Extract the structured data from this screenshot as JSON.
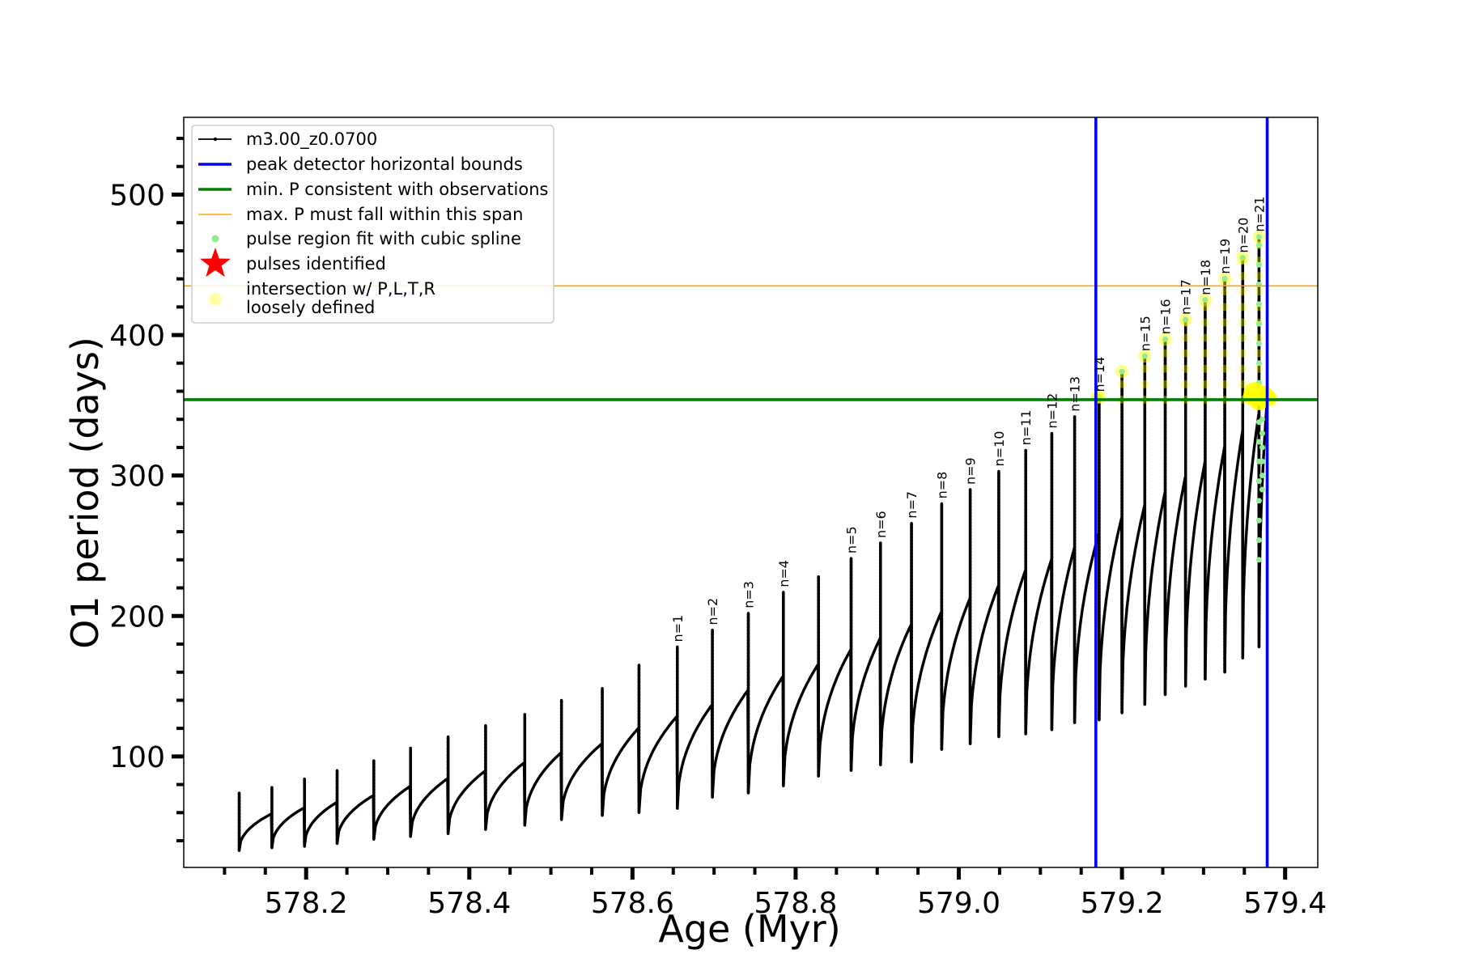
{
  "chart_data": {
    "type": "line",
    "title": "",
    "xlabel": "Age (Myr)",
    "ylabel": "O1 period (days)",
    "xlim": [
      578.05,
      579.44
    ],
    "ylim": [
      21,
      555
    ],
    "x_ticks": [
      578.2,
      578.4,
      578.6,
      578.8,
      579.0,
      579.2,
      579.4
    ],
    "x_tick_labels": [
      "578.2",
      "578.4",
      "578.6",
      "578.8",
      "579.0",
      "579.2",
      "579.4"
    ],
    "x_minor_step": 0.05,
    "y_ticks": [
      100,
      200,
      300,
      400,
      500
    ],
    "y_tick_labels": [
      "100",
      "200",
      "300",
      "400",
      "500"
    ],
    "y_minor_step": 20,
    "grid": false,
    "legend_position": "top-left",
    "colors": {
      "track": "#000000",
      "bounds": "#0000ee",
      "min_period": "#007f00",
      "max_period": "#ffa500",
      "spline": "#90ee90",
      "pulse_star": "#ff0000",
      "loose_points": "#ffff00"
    },
    "legend": [
      {
        "label": "m3.00_z0.0700",
        "marker": "line-dot"
      },
      {
        "label": "peak detector horizontal bounds",
        "marker": "blue-line"
      },
      {
        "label": "min. P consistent with observations",
        "marker": "green-line"
      },
      {
        "label": "max. P must fall within this span",
        "marker": "orange-line"
      },
      {
        "label": "pulse region fit with cubic spline",
        "marker": "green-dot"
      },
      {
        "label": "pulses identified",
        "marker": "red-star"
      },
      {
        "label": "intersection w/ P,L,T,R",
        "marker": "yellow-dot"
      },
      {
        "label": "loosely defined",
        "marker": "none"
      }
    ],
    "vertical_bounds": [
      579.168,
      579.378
    ],
    "min_period": 354,
    "max_period": 435,
    "pulses": [
      {
        "age": 578.118,
        "floor": 33,
        "peak": 74,
        "label": ""
      },
      {
        "age": 578.158,
        "floor": 35,
        "peak": 78,
        "label": ""
      },
      {
        "age": 578.198,
        "floor": 36,
        "peak": 84,
        "label": ""
      },
      {
        "age": 578.238,
        "floor": 38,
        "peak": 90,
        "label": ""
      },
      {
        "age": 578.283,
        "floor": 41,
        "peak": 97,
        "label": ""
      },
      {
        "age": 578.328,
        "floor": 43,
        "peak": 106,
        "label": ""
      },
      {
        "age": 578.374,
        "floor": 45,
        "peak": 114,
        "label": ""
      },
      {
        "age": 578.42,
        "floor": 48,
        "peak": 122,
        "label": ""
      },
      {
        "age": 578.468,
        "floor": 51,
        "peak": 130,
        "label": ""
      },
      {
        "age": 578.513,
        "floor": 55,
        "peak": 140,
        "label": ""
      },
      {
        "age": 578.563,
        "floor": 58,
        "peak": 148,
        "label": ""
      },
      {
        "age": 578.608,
        "floor": 60,
        "peak": 165,
        "label": ""
      },
      {
        "age": 578.655,
        "floor": 63,
        "peak": 178,
        "label": "n=1"
      },
      {
        "age": 578.698,
        "floor": 71,
        "peak": 190,
        "label": "n=2"
      },
      {
        "age": 578.742,
        "floor": 74,
        "peak": 202,
        "label": "n=3"
      },
      {
        "age": 578.785,
        "floor": 79,
        "peak": 217,
        "label": "n=4"
      },
      {
        "age": 578.828,
        "floor": 86,
        "peak": 228,
        "label": ""
      },
      {
        "age": 578.868,
        "floor": 90,
        "peak": 241,
        "label": "n=5"
      },
      {
        "age": 578.904,
        "floor": 94,
        "peak": 252,
        "label": "n=6"
      },
      {
        "age": 578.942,
        "floor": 96,
        "peak": 266,
        "label": "n=7"
      },
      {
        "age": 578.979,
        "floor": 105,
        "peak": 280,
        "label": "n=8"
      },
      {
        "age": 579.014,
        "floor": 109,
        "peak": 290,
        "label": "n=9"
      },
      {
        "age": 579.049,
        "floor": 114,
        "peak": 303,
        "label": "n=10"
      },
      {
        "age": 579.082,
        "floor": 116,
        "peak": 318,
        "label": "n=11"
      },
      {
        "age": 579.114,
        "floor": 119,
        "peak": 330,
        "label": "n=12"
      },
      {
        "age": 579.142,
        "floor": 124,
        "peak": 342,
        "label": "n=13"
      },
      {
        "age": 579.172,
        "floor": 126,
        "peak": 356,
        "label": "n=14"
      },
      {
        "age": 579.2,
        "floor": 131,
        "peak": 374,
        "label": ""
      },
      {
        "age": 579.228,
        "floor": 137,
        "peak": 385,
        "label": "n=15"
      },
      {
        "age": 579.253,
        "floor": 144,
        "peak": 397,
        "label": "n=16"
      },
      {
        "age": 579.278,
        "floor": 150,
        "peak": 411,
        "label": "n=17"
      },
      {
        "age": 579.302,
        "floor": 155,
        "peak": 425,
        "label": "n=18"
      },
      {
        "age": 579.326,
        "floor": 160,
        "peak": 440,
        "label": "n=19"
      },
      {
        "age": 579.348,
        "floor": 170,
        "peak": 455,
        "label": "n=20"
      },
      {
        "age": 579.368,
        "floor": 178,
        "peak": 470,
        "label": "n=21"
      }
    ],
    "end_age": 579.378
  }
}
